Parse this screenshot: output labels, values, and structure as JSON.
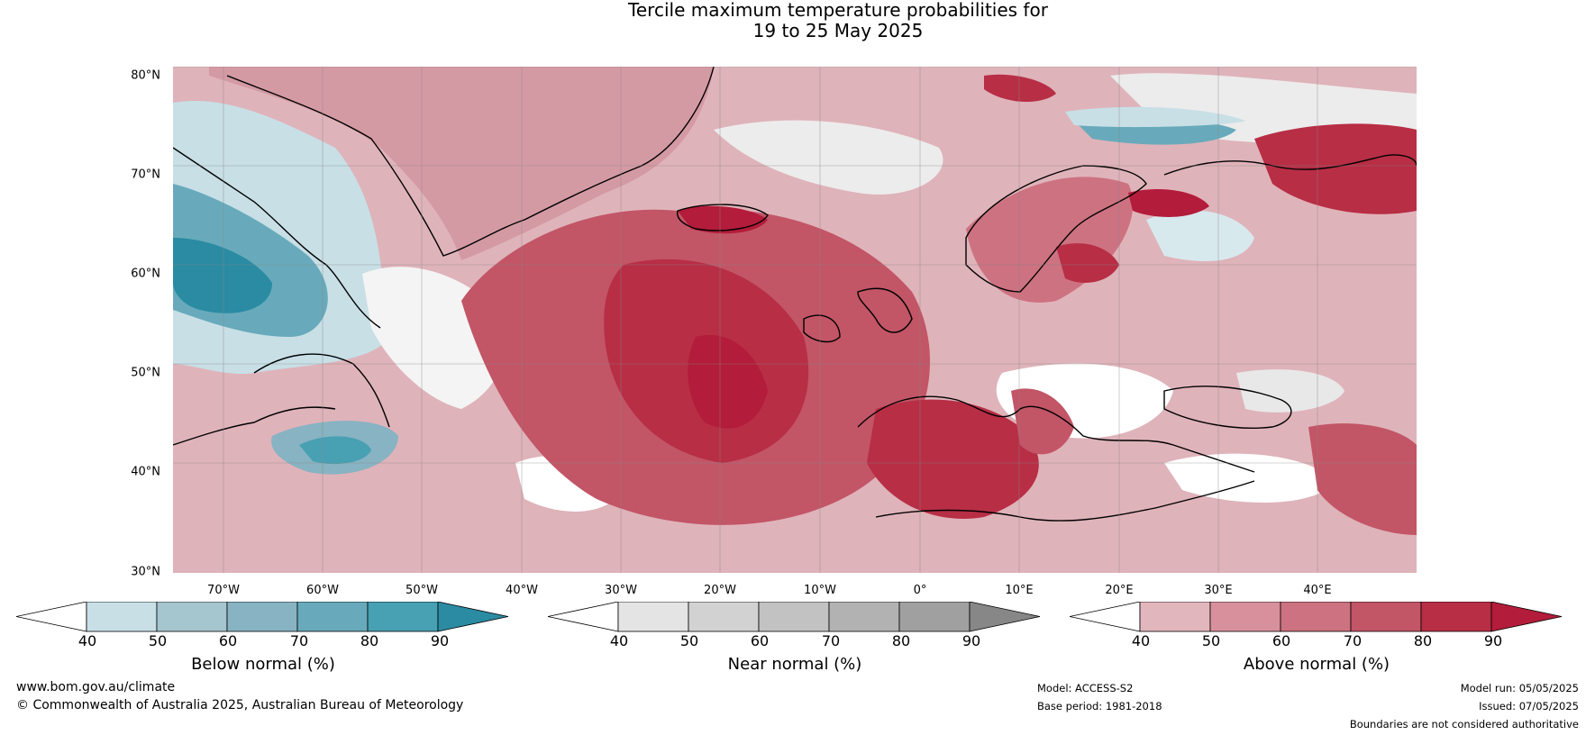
{
  "title_line1": "Tercile maximum temperature probabilities for",
  "title_line2": "19 to 25 May 2025",
  "lat_labels": [
    "80°N",
    "70°N",
    "60°N",
    "50°N",
    "40°N",
    "30°N"
  ],
  "lon_labels": [
    "70°W",
    "60°W",
    "50°W",
    "40°W",
    "30°W",
    "20°W",
    "10°W",
    "0°",
    "10°E",
    "20°E",
    "30°E",
    "40°E"
  ],
  "colorbars": [
    {
      "label": "Below normal (%)",
      "ticks": [
        "40",
        "50",
        "60",
        "70",
        "80",
        "90"
      ],
      "colors": [
        "#ffffff",
        "#c8dfe6",
        "#a6c6cf",
        "#88b3c3",
        "#68aabb",
        "#48a0b3",
        "#2a8ba3"
      ]
    },
    {
      "label": "Near normal (%)",
      "ticks": [
        "40",
        "50",
        "60",
        "70",
        "80",
        "90"
      ],
      "colors": [
        "#ffffff",
        "#e4e4e4",
        "#d2d2d2",
        "#c2c2c2",
        "#b2b2b2",
        "#a0a0a0",
        "#878787"
      ]
    },
    {
      "label": "Above normal (%)",
      "ticks": [
        "40",
        "50",
        "60",
        "70",
        "80",
        "90"
      ],
      "colors": [
        "#ffffff",
        "#e2b6bd",
        "#d8919c",
        "#cd7280",
        "#c25566",
        "#b72e45",
        "#b31c3a"
      ]
    }
  ],
  "footer": {
    "url": "www.bom.gov.au/climate",
    "copyright": "© Commonwealth of Australia 2025, Australian Bureau of Meteorology",
    "model": "Model: ACCESS-S2",
    "base_period": "Base period: 1981-2018",
    "model_run": "Model run: 05/05/2025",
    "issued": "Issued: 07/05/2025",
    "disclaimer": "Boundaries are not considered authoritative"
  },
  "legend_colors": {
    "below_normal": "#2a8ba3",
    "near_normal": "#878787",
    "above_normal": "#b31c3a"
  }
}
